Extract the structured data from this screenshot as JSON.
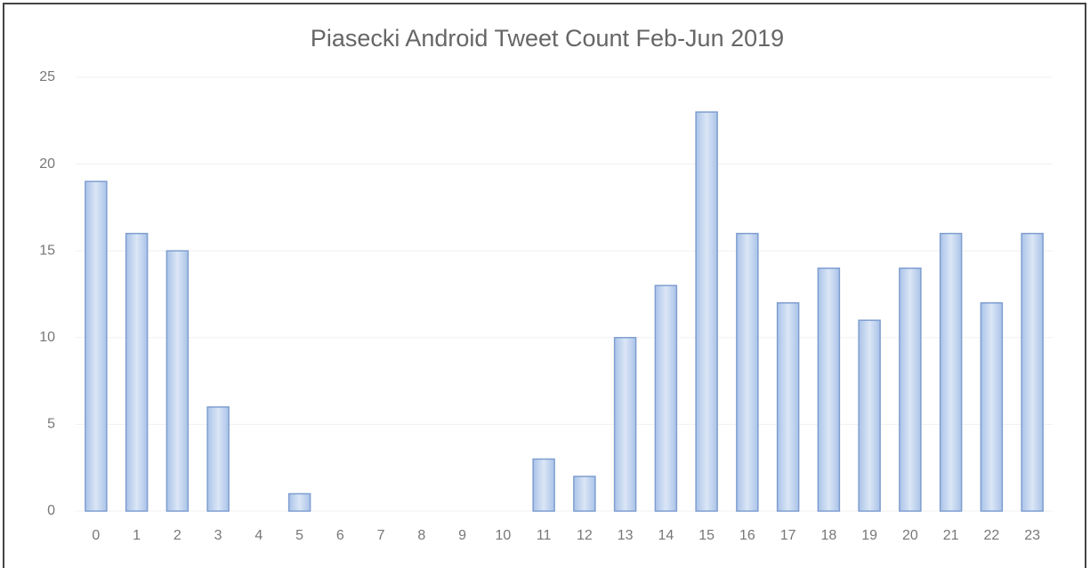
{
  "chart_data": {
    "type": "bar",
    "title": "Piasecki Android Tweet Count Feb-Jun 2019",
    "categories": [
      "0",
      "1",
      "2",
      "3",
      "4",
      "5",
      "6",
      "7",
      "8",
      "9",
      "10",
      "11",
      "12",
      "13",
      "14",
      "15",
      "16",
      "17",
      "18",
      "19",
      "20",
      "21",
      "22",
      "23"
    ],
    "values": [
      19,
      16,
      15,
      6,
      0,
      1,
      0,
      0,
      0,
      0,
      0,
      3,
      2,
      10,
      13,
      23,
      16,
      12,
      14,
      11,
      14,
      16,
      12,
      16
    ],
    "color": "#c3d5ef",
    "ylim": [
      0,
      25
    ],
    "yticks": [
      0,
      5,
      10,
      15,
      20,
      25
    ],
    "grid": true
  }
}
